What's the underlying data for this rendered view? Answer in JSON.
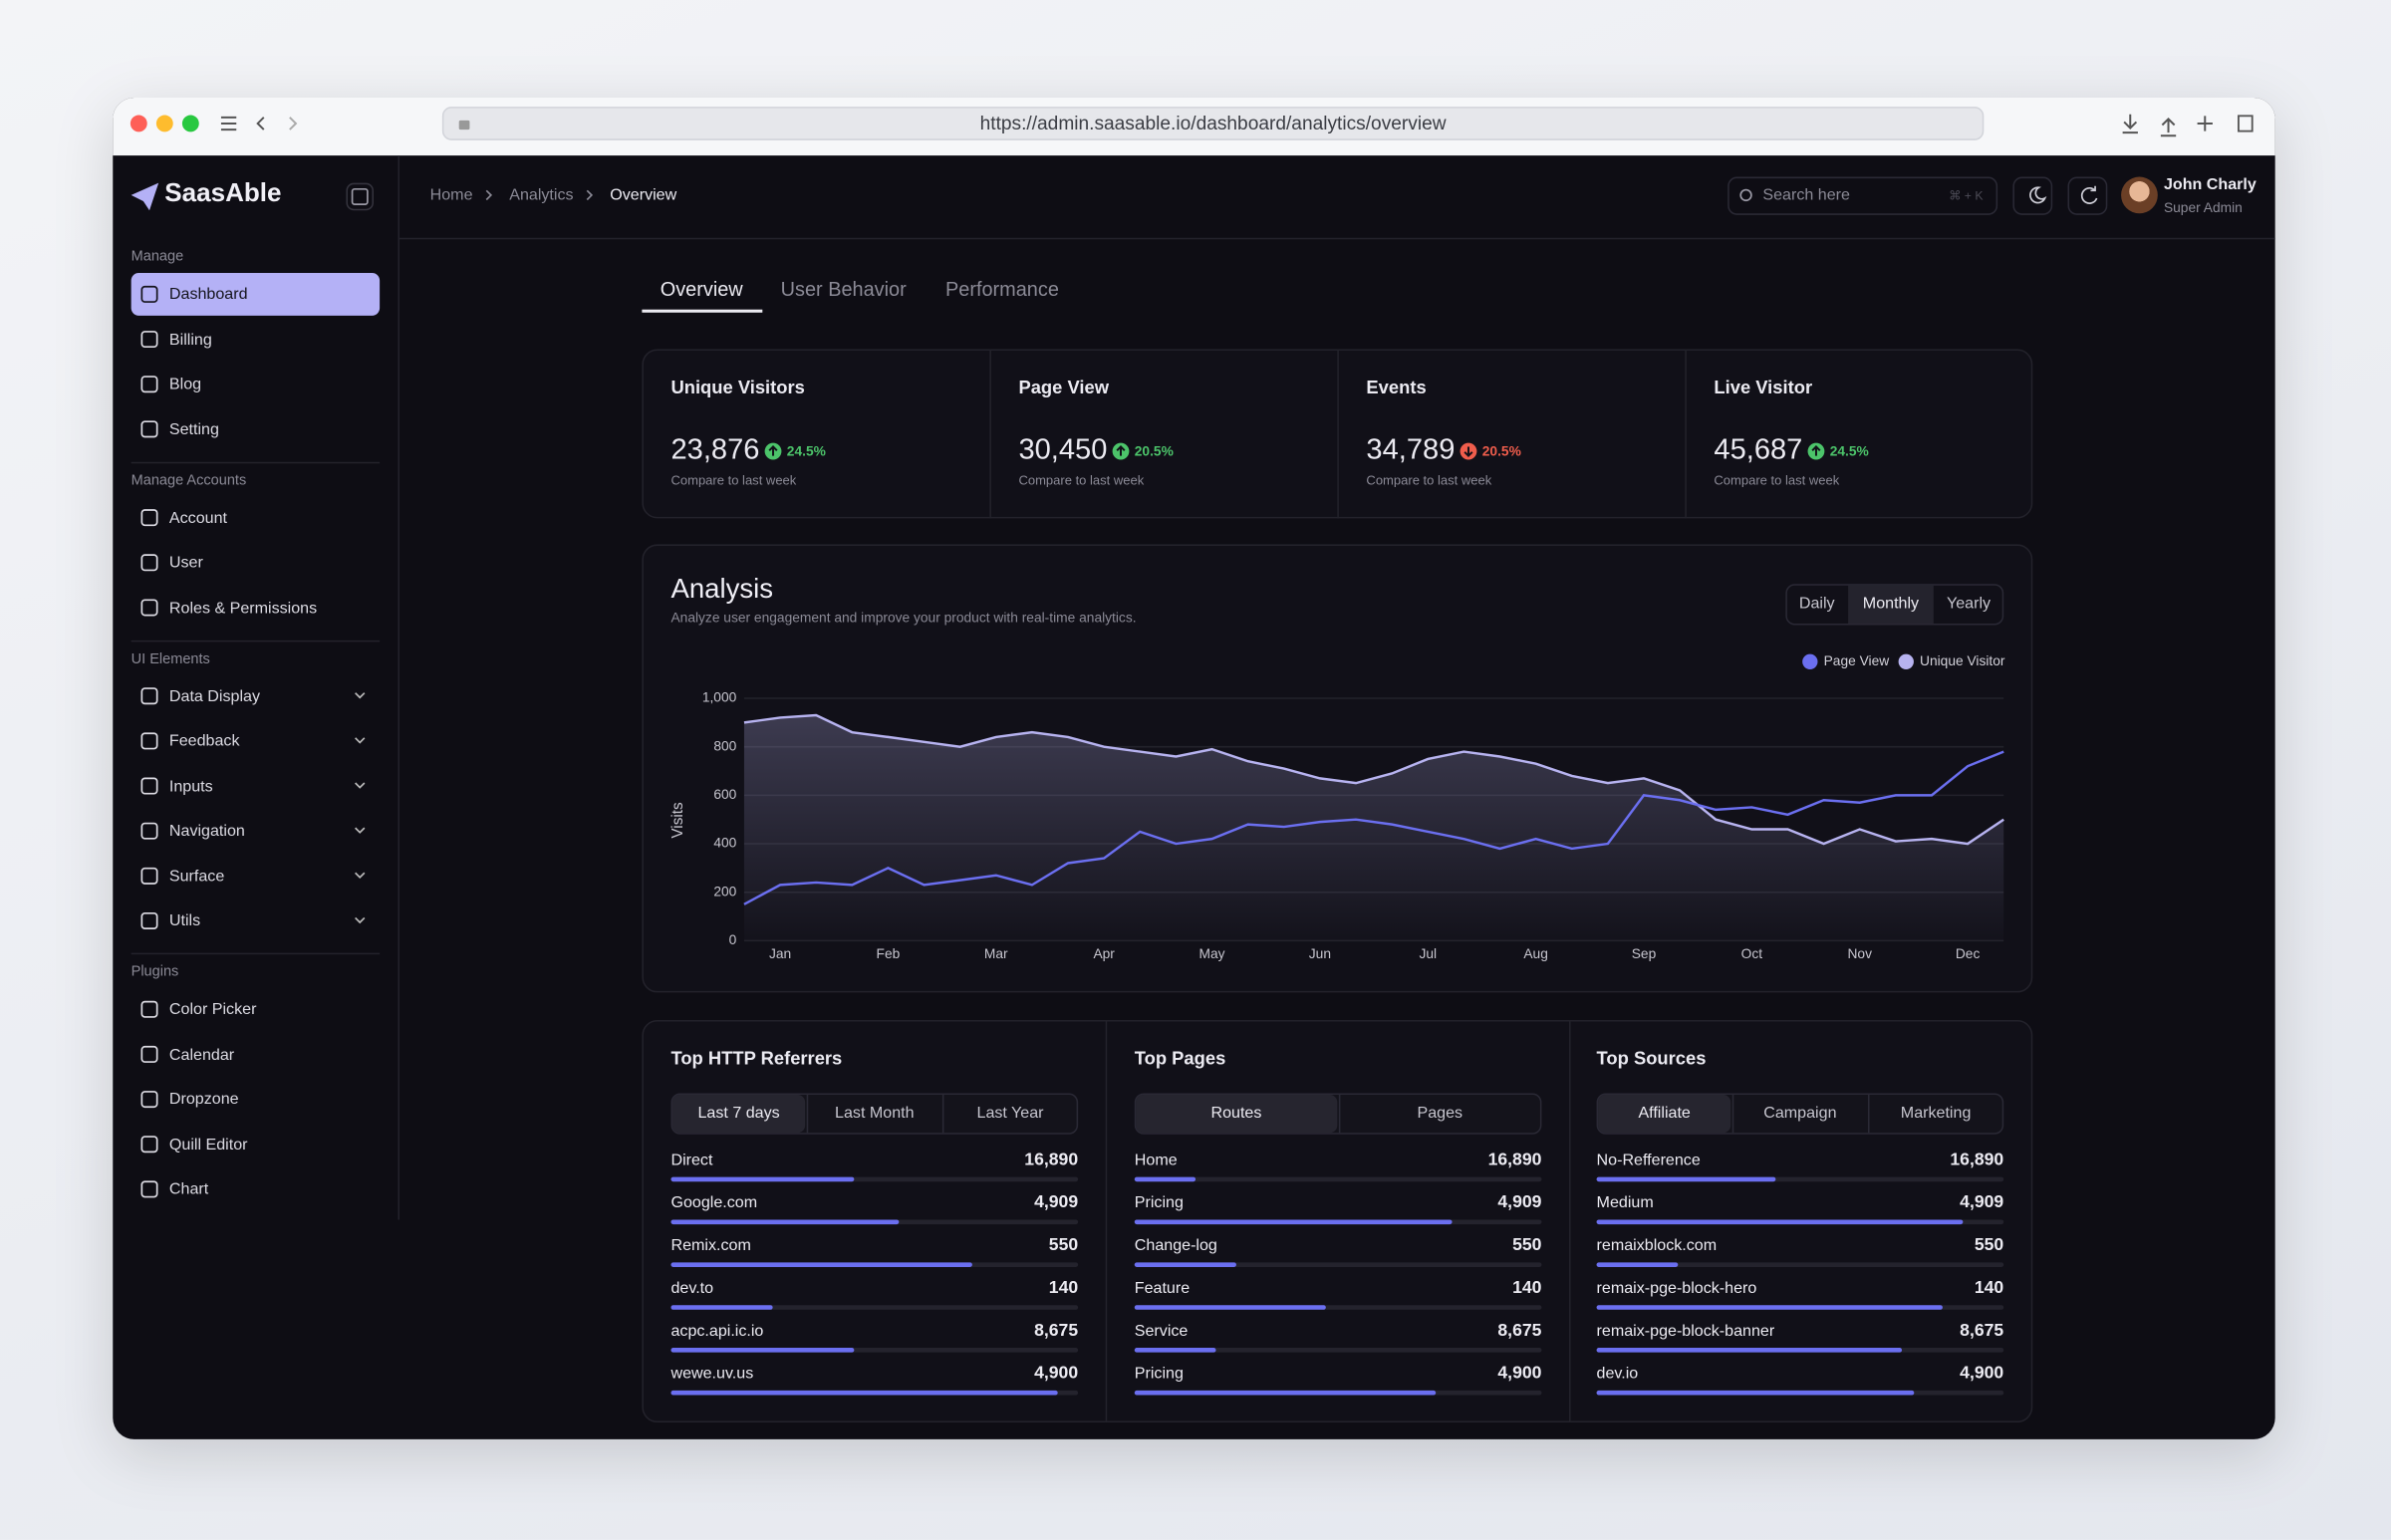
{
  "browser": {
    "url": "https://admin.saasable.io/dashboard/analytics/overview"
  },
  "sidebar": {
    "brand": "SaasAble",
    "groups": [
      {
        "title": "Manage",
        "items": [
          {
            "label": "Dashboard",
            "active": true
          },
          {
            "label": "Billing"
          },
          {
            "label": "Blog"
          },
          {
            "label": "Setting"
          }
        ]
      },
      {
        "title": "Manage Accounts",
        "items": [
          {
            "label": "Account"
          },
          {
            "label": "User"
          },
          {
            "label": "Roles & Permissions"
          }
        ]
      },
      {
        "title": "UI Elements",
        "items": [
          {
            "label": "Data Display",
            "expandable": true
          },
          {
            "label": "Feedback",
            "expandable": true
          },
          {
            "label": "Inputs",
            "expandable": true
          },
          {
            "label": "Navigation",
            "expandable": true
          },
          {
            "label": "Surface",
            "expandable": true
          },
          {
            "label": "Utils",
            "expandable": true
          }
        ]
      },
      {
        "title": "Plugins",
        "items": [
          {
            "label": "Color Picker"
          },
          {
            "label": "Calendar"
          },
          {
            "label": "Dropzone"
          },
          {
            "label": "Quill Editor"
          },
          {
            "label": "Chart"
          }
        ]
      }
    ]
  },
  "header": {
    "breadcrumbs": [
      "Home",
      "Analytics",
      "Overview"
    ],
    "search_placeholder": "Search here",
    "shortcut": "⌘ + K",
    "user": {
      "name": "John Charly",
      "role": "Super Admin"
    }
  },
  "tabs": {
    "items": [
      "Overview",
      "User Behavior",
      "Performance"
    ],
    "active_index": 0
  },
  "stats": [
    {
      "title": "Unique Visitors",
      "value": "23,876",
      "change": "24.5%",
      "trend": "up",
      "note": "Compare to last week"
    },
    {
      "title": "Page View",
      "value": "30,450",
      "change": "20.5%",
      "trend": "up",
      "note": "Compare to last week"
    },
    {
      "title": "Events",
      "value": "34,789",
      "change": "20.5%",
      "trend": "down",
      "note": "Compare to last week"
    },
    {
      "title": "Live Visitor",
      "value": "45,687",
      "change": "24.5%",
      "trend": "up",
      "note": "Compare to last week"
    }
  ],
  "analysis": {
    "title": "Analysis",
    "subtitle": "Analyze user engagement and improve your product with real-time analytics.",
    "periods": [
      "Daily",
      "Monthly",
      "Yearly"
    ],
    "active_period": 1,
    "chart_data": {
      "type": "line",
      "y_label": "Visits",
      "categories": [
        null,
        "Jan",
        null,
        null,
        "Feb",
        null,
        null,
        "Mar",
        null,
        null,
        "Apr",
        null,
        null,
        "May",
        null,
        null,
        "Jun",
        null,
        null,
        "Jul",
        null,
        null,
        "Aug",
        null,
        null,
        "Sep",
        null,
        null,
        "Oct",
        null,
        null,
        "Nov",
        null,
        null,
        "Dec",
        null
      ],
      "series": [
        {
          "name": "Page View",
          "color": "#6b6ff0",
          "area": false,
          "values": [
            150,
            230,
            240,
            230,
            300,
            230,
            250,
            270,
            230,
            320,
            340,
            450,
            400,
            420,
            480,
            470,
            490,
            500,
            480,
            450,
            420,
            380,
            420,
            380,
            400,
            600,
            580,
            540,
            550,
            520,
            580,
            570,
            600,
            600,
            720,
            780
          ]
        },
        {
          "name": "Unique Visitor",
          "color": "#b7b3f0",
          "area": true,
          "values": [
            900,
            920,
            930,
            860,
            840,
            820,
            800,
            840,
            860,
            840,
            800,
            780,
            760,
            790,
            740,
            710,
            670,
            650,
            690,
            750,
            780,
            760,
            730,
            680,
            650,
            670,
            620,
            500,
            460,
            460,
            400,
            460,
            410,
            420,
            400,
            500
          ]
        }
      ],
      "ylim": [
        0,
        1000
      ],
      "yticks": [
        0,
        200,
        400,
        600,
        800,
        {
          "value": 1000,
          "label": "1,000"
        }
      ],
      "grid": true,
      "legend": "top-right"
    }
  },
  "panels": [
    {
      "title": "Top HTTP Referrers",
      "filters": [
        "Last 7 days",
        "Last Month",
        "Last Year"
      ],
      "active_filter": 0,
      "rows": [
        {
          "name": "Direct",
          "value": "16,890",
          "progress": 45
        },
        {
          "name": "Google.com",
          "value": "4,909",
          "progress": 56
        },
        {
          "name": "Remix.com",
          "value": "550",
          "progress": 74
        },
        {
          "name": "dev.to",
          "value": "140",
          "progress": 25
        },
        {
          "name": "acpc.api.ic.io",
          "value": "8,675",
          "progress": 45
        },
        {
          "name": "wewe.uv.us",
          "value": "4,900",
          "progress": 95
        }
      ]
    },
    {
      "title": "Top Pages",
      "filters": [
        "Routes",
        "Pages"
      ],
      "active_filter": 0,
      "rows": [
        {
          "name": "Home",
          "value": "16,890",
          "progress": 15
        },
        {
          "name": "Pricing",
          "value": "4,909",
          "progress": 78
        },
        {
          "name": "Change-log",
          "value": "550",
          "progress": 25
        },
        {
          "name": "Feature",
          "value": "140",
          "progress": 47
        },
        {
          "name": "Service",
          "value": "8,675",
          "progress": 20
        },
        {
          "name": "Pricing",
          "value": "4,900",
          "progress": 74
        }
      ]
    },
    {
      "title": "Top Sources",
      "filters": [
        "Affiliate",
        "Campaign",
        "Marketing"
      ],
      "active_filter": 0,
      "rows": [
        {
          "name": "No-Refference",
          "value": "16,890",
          "progress": 44
        },
        {
          "name": "Medium",
          "value": "4,909",
          "progress": 90
        },
        {
          "name": "remaixblock.com",
          "value": "550",
          "progress": 20
        },
        {
          "name": "remaix-pge-block-hero",
          "value": "140",
          "progress": 85
        },
        {
          "name": "remaix-pge-block-banner",
          "value": "8,675",
          "progress": 75
        },
        {
          "name": "dev.io",
          "value": "4,900",
          "progress": 78
        }
      ]
    }
  ]
}
